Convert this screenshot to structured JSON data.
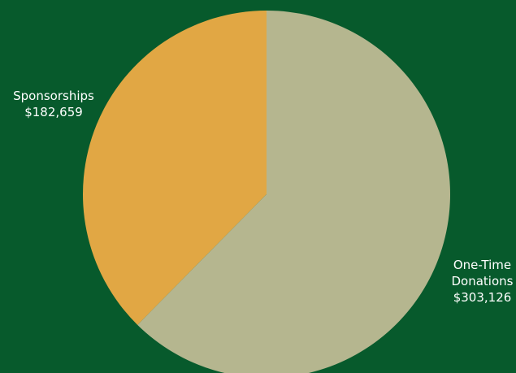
{
  "chart_data": {
    "type": "pie",
    "slices": [
      {
        "label": "Sponsorships",
        "value": 182659,
        "value_label": "$182,659",
        "color": "#e1a744"
      },
      {
        "label": "One-Time Donations",
        "value": 303126,
        "value_label": "$303,126",
        "color": "#b5b68f"
      }
    ],
    "start_angle": "12 o'clock",
    "direction": "counterclockwise",
    "legend": "none",
    "background": "#075a2c",
    "label_color": "#ffffff"
  }
}
